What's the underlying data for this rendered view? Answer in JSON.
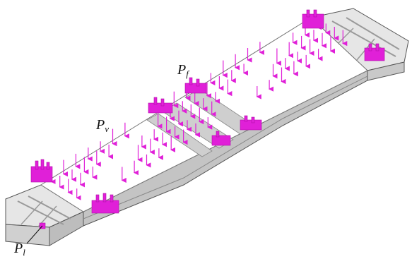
{
  "figure": {
    "labels": {
      "vertical_load": {
        "main": "P",
        "sub": "v"
      },
      "friction_load": {
        "main": "P",
        "sub": "f"
      },
      "longitudinal_load": {
        "main": "P",
        "sub": "l"
      }
    },
    "colors": {
      "arrow": "#e020d8",
      "arrow_dark": "#b010a8",
      "frame_fill": "#e6e6e6",
      "frame_dark": "#9a9a9a",
      "frame_line": "#555555",
      "deck_fill": "#ffffff",
      "side_fill": "#d0d0d0"
    }
  }
}
